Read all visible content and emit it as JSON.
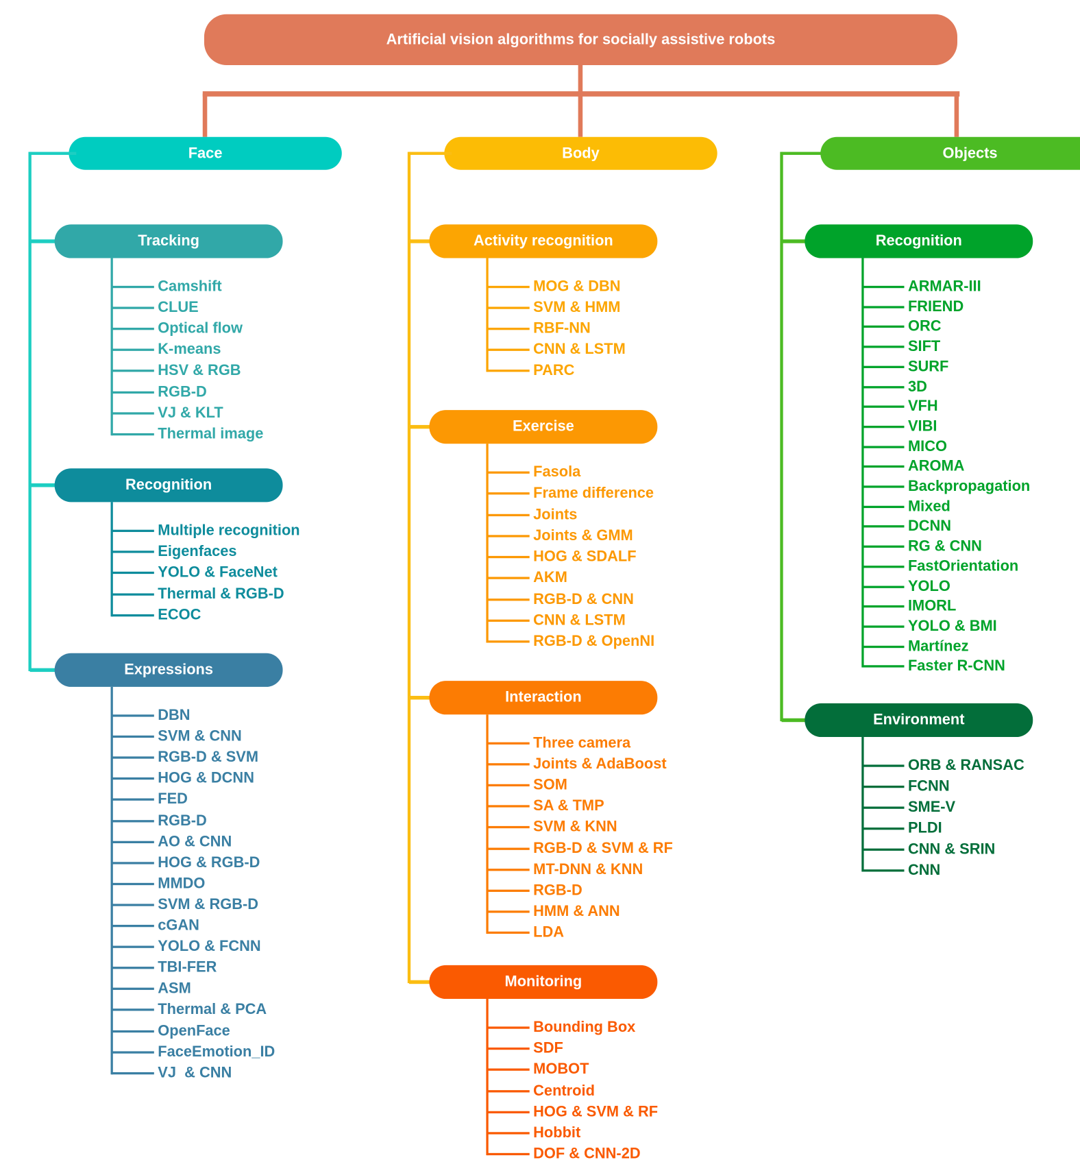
{
  "root": {
    "label": "Artificial vision algorithms for socially assistive robots",
    "color": "#E07A5A"
  },
  "categories": [
    {
      "label": "Face",
      "color": "#00CCC0",
      "line_color": "#1DCEC2",
      "groups": [
        {
          "label": "Tracking",
          "color": "#31A8A8",
          "items": [
            "Camshift",
            "CLUE",
            "Optical flow",
            "K-means",
            "HSV & RGB",
            "RGB-D",
            "VJ & KLT",
            "Thermal image"
          ]
        },
        {
          "label": "Recognition",
          "color": "#0E8C9C",
          "items": [
            "Multiple recognition",
            "Eigenfaces",
            "YOLO & FaceNet",
            "Thermal & RGB-D",
            "ECOC"
          ]
        },
        {
          "label": "Expressions",
          "color": "#3A7FA3",
          "items": [
            "DBN",
            "SVM & CNN",
            "RGB-D & SVM",
            "HOG & DCNN",
            "FED",
            "RGB-D",
            "AO & CNN",
            "HOG & RGB-D",
            "MMDO",
            "SVM & RGB-D",
            "cGAN",
            "YOLO & FCNN",
            "TBI-FER",
            "ASM",
            "Thermal & PCA",
            "OpenFace",
            "FaceEmotion_ID",
            "VJ  & CNN"
          ]
        }
      ]
    },
    {
      "label": "Body",
      "color": "#FCBC05",
      "line_color": "#FBBD12",
      "groups": [
        {
          "label": "Activity recognition",
          "color": "#FCA502",
          "items": [
            "MOG & DBN",
            "SVM & HMM",
            "RBF-NN",
            "CNN & LSTM",
            "PARC"
          ]
        },
        {
          "label": "Exercise",
          "color": "#FC9803",
          "items": [
            "Fasola",
            "Frame difference",
            "Joints",
            "Joints & GMM",
            "HOG & SDALF",
            "AKM",
            "RGB-D & CNN",
            "CNN & LSTM",
            "RGB-D & OpenNI"
          ]
        },
        {
          "label": "Interaction",
          "color": "#FC7C03",
          "items": [
            "Three camera",
            "Joints & AdaBoost",
            "SOM",
            "SA & TMP",
            "SVM & KNN",
            "RGB-D & SVM & RF",
            "MT-DNN & KNN",
            "RGB-D",
            "HMM & ANN",
            "LDA"
          ]
        },
        {
          "label": "Monitoring",
          "color": "#FA5A01",
          "items": [
            "Bounding Box",
            "SDF",
            "MOBOT",
            "Centroid",
            "HOG & SVM & RF",
            "Hobbit",
            "DOF & CNN-2D"
          ]
        }
      ]
    },
    {
      "label": "Objects",
      "color": "#4CBB23",
      "line_color": "#4CBB23",
      "groups": [
        {
          "label": "Recognition",
          "color": "#00A32A",
          "items": [
            "ARMAR-III",
            "FRIEND",
            "ORC",
            "SIFT",
            "SURF",
            "3D",
            "VFH",
            "VIBI",
            "MICO",
            "AROMA",
            "Backpropagation",
            "Mixed",
            "DCNN",
            "RG & CNN",
            "FastOrientation",
            "YOLO",
            "IMORL",
            "YOLO & BMI",
            "Martínez",
            "Faster R-CNN"
          ]
        },
        {
          "label": "Environment",
          "color": "#036E3A",
          "items": [
            "ORB & RANSAC",
            "FCNN",
            "SME-V",
            "PLDI",
            "CNN & SRIN",
            "CNN"
          ]
        }
      ]
    }
  ]
}
